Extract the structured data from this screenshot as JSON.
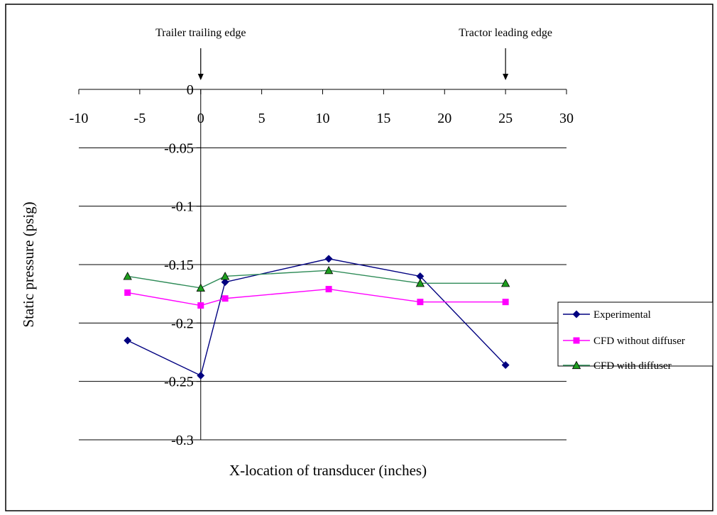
{
  "chart_data": {
    "type": "line",
    "title": "",
    "xlabel": "X-location of transducer (inches)",
    "ylabel": "Static pressure (psig)",
    "xlim": [
      -10,
      30
    ],
    "ylim": [
      -0.3,
      0
    ],
    "x_ticks": [
      -10,
      -5,
      0,
      5,
      10,
      15,
      20,
      25,
      30
    ],
    "x_tick_labels": [
      "-10",
      "-5",
      "0",
      "5",
      "10",
      "15",
      "20",
      "25",
      "30"
    ],
    "y_ticks": [
      0,
      -0.05,
      -0.1,
      -0.15,
      -0.2,
      -0.25,
      -0.3
    ],
    "y_tick_labels": [
      "0",
      "-0.05",
      "-0.1",
      "-0.15",
      "-0.2",
      "-0.25",
      "-0.3"
    ],
    "grid": "horizontal",
    "legend_position": "right",
    "series": [
      {
        "name": "Experimental",
        "marker": "diamond",
        "color": "#000080",
        "points": [
          [
            -6,
            -0.215
          ],
          [
            0,
            -0.245
          ],
          [
            2,
            -0.165
          ],
          [
            10.5,
            -0.145
          ],
          [
            18,
            -0.16
          ],
          [
            25,
            -0.236
          ]
        ]
      },
      {
        "name": "CFD without diffuser",
        "marker": "square",
        "color": "#FF00FF",
        "points": [
          [
            -6,
            -0.174
          ],
          [
            0,
            -0.185
          ],
          [
            2,
            -0.179
          ],
          [
            10.5,
            -0.171
          ],
          [
            18,
            -0.182
          ],
          [
            25,
            -0.182
          ]
        ]
      },
      {
        "name": "CFD with diffuser",
        "marker": "triangle",
        "color": "#2E8B57",
        "marker_fill": "#1E9E1E",
        "points": [
          [
            -6,
            -0.16
          ],
          [
            0,
            -0.17
          ],
          [
            2,
            -0.16
          ],
          [
            10.5,
            -0.155
          ],
          [
            18,
            -0.166
          ],
          [
            25,
            -0.166
          ]
        ]
      }
    ],
    "annotations": [
      {
        "text": "Trailer trailing edge",
        "x": 0
      },
      {
        "text": "Tractor leading edge",
        "x": 25
      }
    ]
  }
}
